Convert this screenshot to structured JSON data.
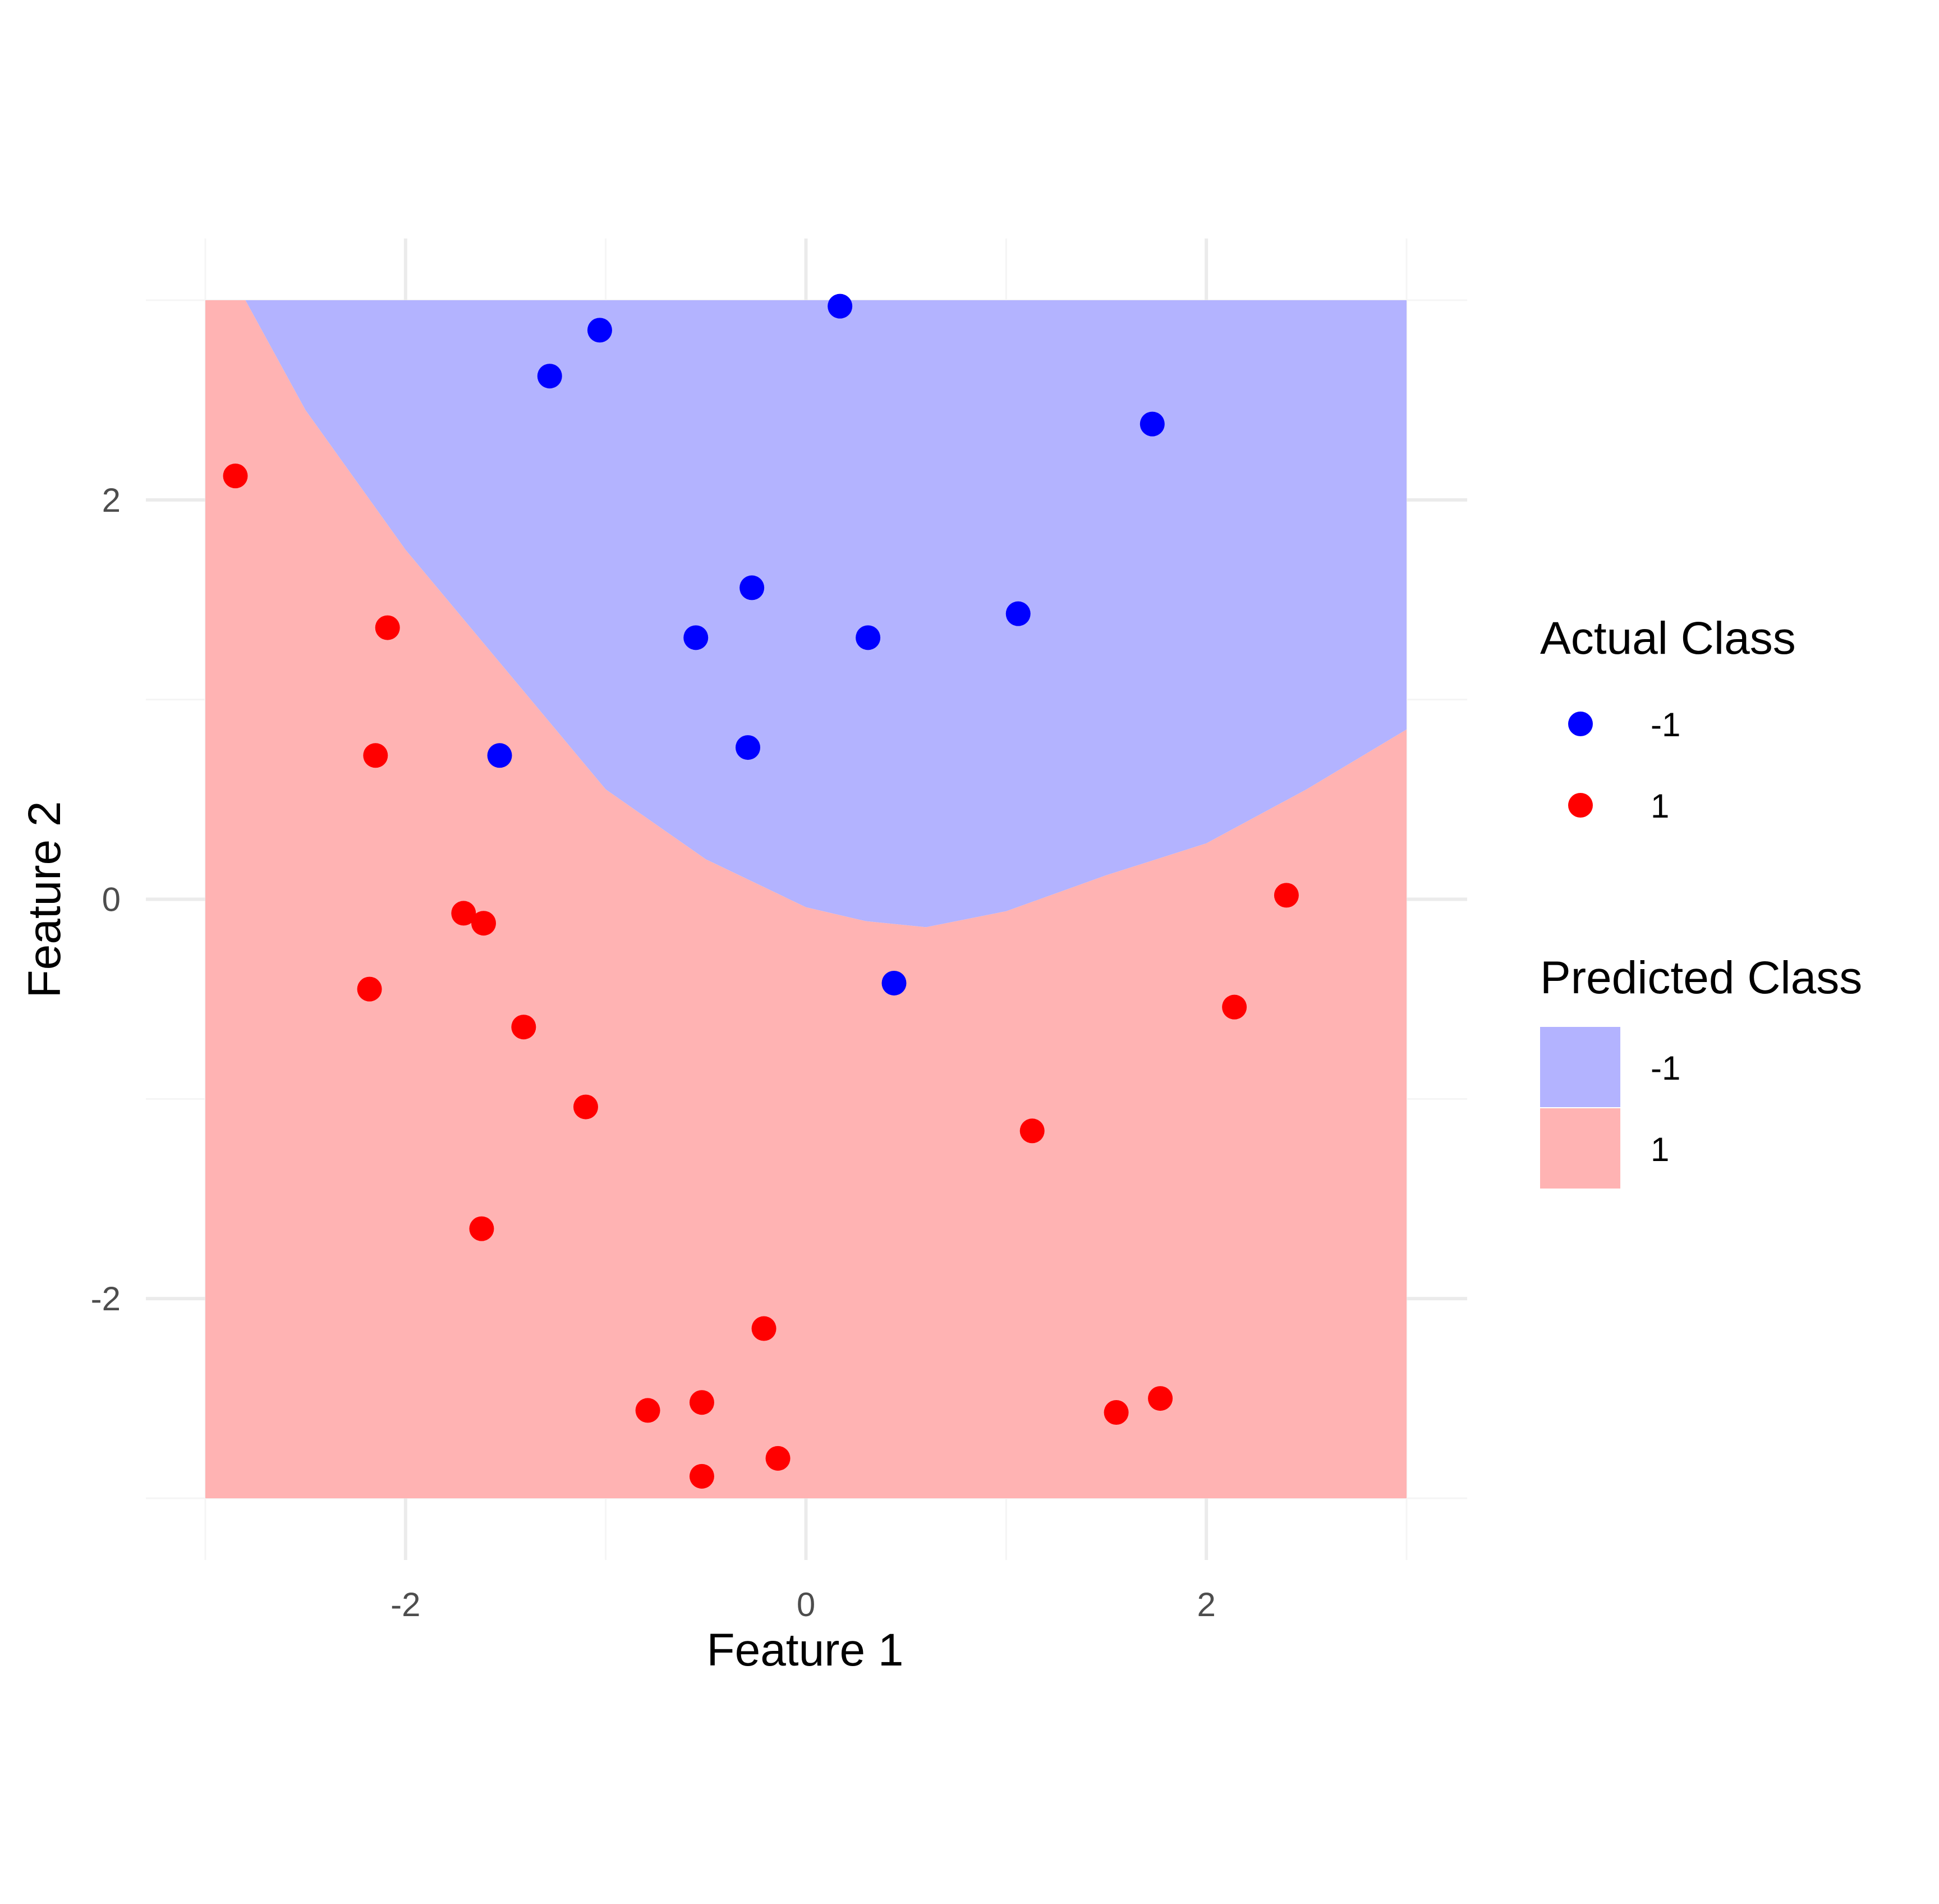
{
  "chart_data": {
    "type": "scatter",
    "title": "",
    "xlabel": "Feature 1",
    "ylabel": "Feature 2",
    "xlim": [
      -3,
      3
    ],
    "ylim": [
      -3,
      3
    ],
    "x_ticks": [
      -2,
      0,
      2
    ],
    "x_tick_labels": [
      "-2",
      "0",
      "2"
    ],
    "y_ticks": [
      -2,
      0,
      2
    ],
    "y_tick_labels": [
      "-2",
      "0",
      "2"
    ],
    "grid": true,
    "legend_position": "right",
    "decision_region": {
      "description_of_boundary_points": "Predicted Class -1 lies above the boundary curve; Predicted Class 1 lies below it",
      "boundary": [
        {
          "x": -2.8,
          "y": 3.0
        },
        {
          "x": -2.5,
          "y": 2.45
        },
        {
          "x": -2.0,
          "y": 1.75
        },
        {
          "x": -1.5,
          "y": 1.15
        },
        {
          "x": -1.0,
          "y": 0.55
        },
        {
          "x": -0.5,
          "y": 0.2
        },
        {
          "x": 0.0,
          "y": -0.04
        },
        {
          "x": 0.3,
          "y": -0.11
        },
        {
          "x": 0.6,
          "y": -0.14
        },
        {
          "x": 1.0,
          "y": -0.06
        },
        {
          "x": 1.5,
          "y": 0.12
        },
        {
          "x": 2.0,
          "y": 0.28
        },
        {
          "x": 2.5,
          "y": 0.55
        },
        {
          "x": 3.0,
          "y": 0.85
        }
      ],
      "classes": [
        {
          "name": "-1",
          "color": "#b3b3ff",
          "side": "above"
        },
        {
          "name": "1",
          "color": "#ffb3b3",
          "side": "below"
        }
      ]
    },
    "series": [
      {
        "name": "-1",
        "color": "#0000ff",
        "points": [
          {
            "x": 0.17,
            "y": 2.97
          },
          {
            "x": -1.03,
            "y": 2.85
          },
          {
            "x": -1.28,
            "y": 2.62
          },
          {
            "x": 1.73,
            "y": 2.38
          },
          {
            "x": -0.27,
            "y": 1.56
          },
          {
            "x": 1.06,
            "y": 1.43
          },
          {
            "x": -0.55,
            "y": 1.31
          },
          {
            "x": 0.31,
            "y": 1.31
          },
          {
            "x": -0.29,
            "y": 0.76
          },
          {
            "x": -1.53,
            "y": 0.72
          },
          {
            "x": 0.44,
            "y": -0.42
          }
        ]
      },
      {
        "name": "1",
        "color": "#ff0000",
        "points": [
          {
            "x": -2.85,
            "y": 2.12
          },
          {
            "x": -2.09,
            "y": 1.36
          },
          {
            "x": -2.15,
            "y": 0.72
          },
          {
            "x": -1.71,
            "y": -0.07
          },
          {
            "x": -1.61,
            "y": -0.12
          },
          {
            "x": -2.18,
            "y": -0.45
          },
          {
            "x": -1.41,
            "y": -0.64
          },
          {
            "x": -1.1,
            "y": -1.04
          },
          {
            "x": -1.62,
            "y": -1.65
          },
          {
            "x": -0.21,
            "y": -2.15
          },
          {
            "x": -0.79,
            "y": -2.56
          },
          {
            "x": -0.52,
            "y": -2.52
          },
          {
            "x": -0.14,
            "y": -2.8
          },
          {
            "x": -0.52,
            "y": -2.89
          },
          {
            "x": 2.4,
            "y": 0.02
          },
          {
            "x": 2.14,
            "y": -0.54
          },
          {
            "x": 1.13,
            "y": -1.16
          },
          {
            "x": 1.55,
            "y": -2.57
          },
          {
            "x": 1.77,
            "y": -2.5
          }
        ]
      }
    ],
    "legends": [
      {
        "title": "Actual Class",
        "items": [
          {
            "label": "-1",
            "color": "#0000ff"
          },
          {
            "label": "1",
            "color": "#ff0000"
          }
        ]
      },
      {
        "title": "Predicted Class",
        "items": [
          {
            "label": "-1",
            "color": "#b3b3ff"
          },
          {
            "label": "1",
            "color": "#ffb3b3"
          }
        ]
      }
    ]
  }
}
